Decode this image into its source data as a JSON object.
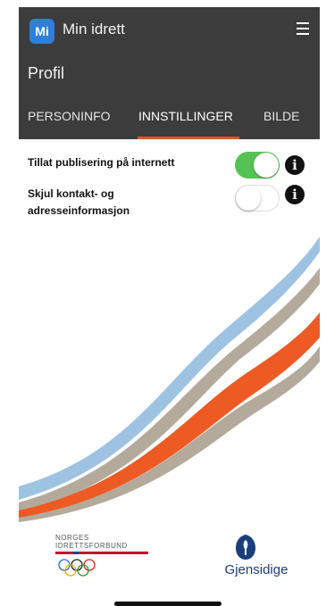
{
  "app": {
    "logo_text": "Mi",
    "title": "Min idrett",
    "menu_icon": "hamburger-menu-icon"
  },
  "page": {
    "title": "Profil"
  },
  "tabs": [
    {
      "label": "PERSONINFO",
      "active": false
    },
    {
      "label": "INNSTILLINGER",
      "active": true
    },
    {
      "label": "BILDE",
      "active": false
    }
  ],
  "settings": [
    {
      "label": "Tillat publisering på internett",
      "enabled": true
    },
    {
      "label_line1": "Skjul kontakt- og",
      "label_line2": "adresseinformasjon",
      "enabled": false
    }
  ],
  "info_icon_glyph": "i",
  "footer": {
    "nif_line1": "NORGES",
    "nif_line2": "IDRETTSFORBUND",
    "sponsor": "Gjensidige"
  },
  "colors": {
    "header_bg": "#3c3c3c",
    "accent": "#e8531f",
    "toggle_on": "#54c354",
    "logo_blue": "#2f7fd8",
    "stripe_blue": "#9ec3e2",
    "stripe_taupe": "#b3aa9c",
    "stripe_orange": "#ee5a24"
  }
}
